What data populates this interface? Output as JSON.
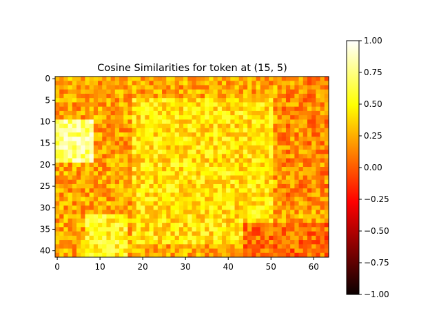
{
  "chart_data": {
    "type": "heatmap",
    "title": "Cosine Similarities for token at (15, 5)",
    "xlabel": "",
    "ylabel": "",
    "colormap": "hot",
    "rows": 42,
    "cols": 64,
    "xlim": [
      -0.5,
      63.5
    ],
    "ylim": [
      41.5,
      -0.5
    ],
    "x_ticks": [
      0,
      10,
      20,
      30,
      40,
      50,
      60
    ],
    "y_ticks": [
      0,
      5,
      10,
      15,
      20,
      25,
      30,
      35,
      40
    ],
    "colorbar": {
      "min": -1.0,
      "max": 1.0,
      "ticks": [
        {
          "value": 1.0,
          "label": "1.00"
        },
        {
          "value": 0.75,
          "label": "0.75"
        },
        {
          "value": 0.5,
          "label": "0.50"
        },
        {
          "value": 0.25,
          "label": "0.25"
        },
        {
          "value": 0.0,
          "label": "0.00"
        },
        {
          "value": -0.25,
          "label": "−0.25"
        },
        {
          "value": -0.5,
          "label": "−0.50"
        },
        {
          "value": -0.75,
          "label": "−0.75"
        },
        {
          "value": -1.0,
          "label": "−1.00"
        }
      ]
    },
    "value_range": [
      -0.35,
      0.95
    ],
    "regions": [
      {
        "description": "bright patch near query token",
        "rows": [
          10,
          19
        ],
        "cols": [
          0,
          8
        ],
        "value": 0.75
      },
      {
        "description": "warm central texture",
        "rows": [
          5,
          38
        ],
        "cols": [
          18,
          50
        ],
        "value": 0.42
      },
      {
        "description": "light triangle",
        "rows": [
          32,
          41
        ],
        "cols": [
          7,
          16
        ],
        "value": 0.5
      },
      {
        "description": "lower-right low band",
        "rows": [
          34,
          41
        ],
        "cols": [
          44,
          63
        ],
        "value": 0.05
      },
      {
        "description": "upper-right orange",
        "rows": [
          0,
          30
        ],
        "cols": [
          52,
          63
        ],
        "value": 0.15
      }
    ]
  }
}
